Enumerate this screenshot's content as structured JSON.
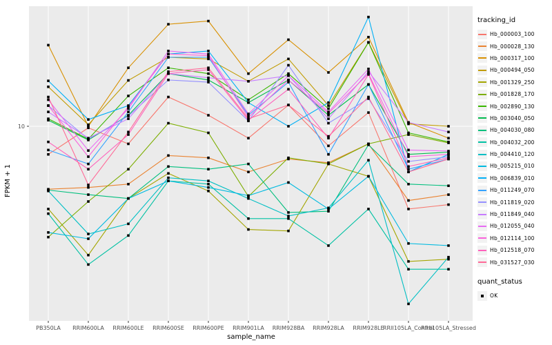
{
  "figure": {
    "y_axis": {
      "label": "FPKM + 1",
      "tick_labels": [
        "10"
      ]
    },
    "x_axis": {
      "label": "sample_name"
    },
    "legend": {
      "title": "tracking_id",
      "quant_title": "quant_status",
      "quant_items": [
        {
          "label": "OK",
          "marker": "filled-black-square"
        }
      ]
    },
    "colors": {
      "panel_bg": "#EBEBEB",
      "grid": "#FFFFFF",
      "legend_key_bg": "#F2F2F2",
      "tick_text": "#4D4D4D",
      "point": "#000000"
    }
  },
  "chart_data": {
    "type": "line",
    "title": "",
    "xlabel": "sample_name",
    "ylabel": "FPKM + 1",
    "y_scale": "log10",
    "y_ticks": [
      10
    ],
    "legend_position": "right",
    "grid": "white-on-gray-panel",
    "point_marker": "black-square (quant_status OK)",
    "categories": [
      "PB350LA",
      "RRIM600LA",
      "RRIM600LE",
      "RRIM600SE",
      "RRIM600PE",
      "RRIM901LA",
      "RRIM928BA",
      "RRIM928LA",
      "RRIM928LE",
      "RRII105LA_Control",
      "RRII105LA_Stressed"
    ],
    "series": [
      {
        "name": "Hb_000003_100",
        "color": "#F8766D",
        "values": [
          7.0,
          9.8,
          8.0,
          14.5,
          11.5,
          8.6,
          13.1,
          7.8,
          11.9,
          3.5,
          3.7
        ]
      },
      {
        "name": "Hb_000028_130",
        "color": "#EA8331",
        "values": [
          4.5,
          4.6,
          4.8,
          6.9,
          6.7,
          5.6,
          6.6,
          6.3,
          8.0,
          3.9,
          4.2
        ]
      },
      {
        "name": "Hb_000317_100",
        "color": "#D89000",
        "values": [
          28,
          10.0,
          21,
          36.5,
          38,
          19.5,
          30,
          19.8,
          31,
          10.5,
          8.6
        ]
      },
      {
        "name": "Hb_000494_050",
        "color": "#C09B00",
        "values": [
          16.5,
          10.2,
          17.9,
          24,
          23.5,
          17.7,
          23.5,
          13.0,
          29,
          10.3,
          10.0
        ]
      },
      {
        "name": "Hb_001329_250",
        "color": "#A3A500",
        "values": [
          3.5,
          1.95,
          4.0,
          5.5,
          4.4,
          2.7,
          2.65,
          6.2,
          5.3,
          1.8,
          1.85
        ]
      },
      {
        "name": "Hb_001828_170",
        "color": "#7CAE00",
        "values": [
          2.45,
          3.85,
          5.8,
          10.4,
          9.2,
          4.1,
          6.7,
          6.2,
          8.0,
          9.0,
          8.1
        ]
      },
      {
        "name": "Hb_002890_130",
        "color": "#39B600",
        "values": [
          11.0,
          8.5,
          14.7,
          21,
          19.5,
          14.0,
          19.5,
          12.5,
          29,
          9.2,
          8.2
        ]
      },
      {
        "name": "Hb_003040_050",
        "color": "#00BB4E",
        "values": [
          10.8,
          8.4,
          11.5,
          19.5,
          18,
          13.5,
          18,
          11.5,
          17,
          7.0,
          7.2
        ]
      },
      {
        "name": "Hb_004030_080",
        "color": "#00BF7D",
        "values": [
          4.45,
          4.2,
          4.0,
          6.0,
          5.8,
          6.2,
          3.35,
          3.4,
          7.9,
          4.8,
          4.7
        ]
      },
      {
        "name": "Hb_004032_200",
        "color": "#00C1A3",
        "values": [
          3.3,
          1.73,
          2.5,
          5.0,
          4.8,
          3.1,
          3.1,
          2.2,
          3.5,
          1.63,
          1.63
        ]
      },
      {
        "name": "Hb_004410_120",
        "color": "#00BFC4",
        "values": [
          4.4,
          2.55,
          2.9,
          5.2,
          5.0,
          4.0,
          3.2,
          3.55,
          6.5,
          1.05,
          1.9
        ]
      },
      {
        "name": "Hb_005215_010",
        "color": "#00BAE0",
        "values": [
          2.6,
          2.4,
          4.0,
          5.0,
          4.6,
          4.15,
          4.9,
          3.5,
          5.3,
          2.26,
          2.2
        ]
      },
      {
        "name": "Hb_006839_010",
        "color": "#00B0F6",
        "values": [
          17.8,
          10.9,
          13.0,
          25,
          26,
          13.5,
          10.0,
          13.5,
          40,
          5.6,
          7.0
        ]
      },
      {
        "name": "Hb_011249_070",
        "color": "#35A2FF",
        "values": [
          7.4,
          6.2,
          12.0,
          24,
          24,
          11.5,
          17.5,
          7.0,
          17,
          5.8,
          6.6
        ]
      },
      {
        "name": "Hb_011819_020",
        "color": "#9590FF",
        "values": [
          13.0,
          8.5,
          11.4,
          18,
          17.5,
          10.7,
          21.7,
          10.4,
          14.2,
          6.4,
          6.8
        ]
      },
      {
        "name": "Hb_011849_040",
        "color": "#C77CFF",
        "values": [
          12.0,
          8.6,
          11.0,
          19.5,
          18.5,
          17.7,
          19.0,
          11.0,
          20,
          10.5,
          9.3
        ]
      },
      {
        "name": "Hb_012055_040",
        "color": "#E76BF3",
        "values": [
          14.0,
          7.35,
          12.5,
          26,
          25,
          11.7,
          19.0,
          12.0,
          20.7,
          7.4,
          7.3
        ]
      },
      {
        "name": "Hb_012114_100",
        "color": "#FA62DB",
        "values": [
          13.0,
          6.8,
          12.8,
          25,
          24.5,
          11.2,
          18.0,
          11.8,
          19.5,
          6.8,
          7.0
        ]
      },
      {
        "name": "Hb_012518_070",
        "color": "#FF62BC",
        "values": [
          8.2,
          5.8,
          9.0,
          19.5,
          20.5,
          10.8,
          16.0,
          8.6,
          19.3,
          6.0,
          6.7
        ]
      },
      {
        "name": "Hb_031527_030",
        "color": "#FF6A98",
        "values": [
          14.5,
          4.75,
          9.3,
          20,
          21,
          11.0,
          13.1,
          8.8,
          14.5,
          5.6,
          6.6
        ]
      }
    ]
  }
}
